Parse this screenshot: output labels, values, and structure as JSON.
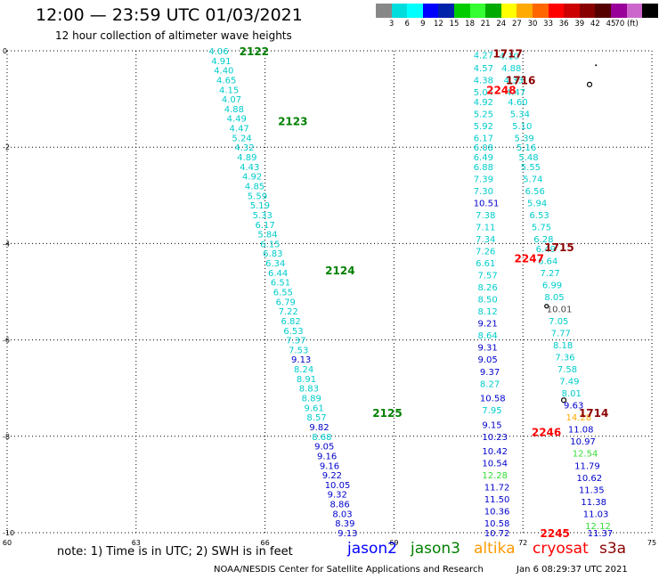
{
  "header": {
    "title": "12:00 — 23:59 UTC 01/03/2021",
    "subtitle": "12 hour collection of altimeter wave heights"
  },
  "colorbar": {
    "colors": [
      "#888888",
      "#00dddd",
      "#00ffff",
      "#0000ff",
      "#0022aa",
      "#00cc00",
      "#33ff33",
      "#00aa00",
      "#ffff00",
      "#ffaa00",
      "#ff6600",
      "#ff0000",
      "#cc0000",
      "#880000",
      "#550000",
      "#990099",
      "#cc66cc",
      "#000000"
    ],
    "labels": [
      "3",
      "6",
      "9",
      "12",
      "15",
      "18",
      "21",
      "24",
      "27",
      "30",
      "33",
      "36",
      "39",
      "42",
      "45",
      "70 (ft)"
    ]
  },
  "chart_data": {
    "type": "scatter",
    "xlim": [
      60,
      75
    ],
    "ylim": [
      -10,
      0
    ],
    "xticks": [
      "60",
      "63",
      "66",
      "69",
      "72",
      "75"
    ],
    "yticks": [
      "0",
      "-2",
      "-4",
      "-6",
      "-8",
      "-10"
    ],
    "grid": true,
    "track_labels": [
      {
        "text": "2122",
        "lon": 65.4,
        "lat": 0.0,
        "color": "#008000"
      },
      {
        "text": "2123",
        "lon": 66.3,
        "lat": -1.45,
        "color": "#008000"
      },
      {
        "text": "2124",
        "lon": 67.4,
        "lat": -4.55,
        "color": "#008000"
      },
      {
        "text": "2125",
        "lon": 68.5,
        "lat": -7.5,
        "color": "#008000"
      },
      {
        "text": "1717",
        "lon": 71.3,
        "lat": -0.05,
        "color": "#8b0000"
      },
      {
        "text": "1716",
        "lon": 71.6,
        "lat": -0.6,
        "color": "#8b0000"
      },
      {
        "text": "2248",
        "lon": 71.15,
        "lat": -0.8,
        "color": "#ff0000"
      },
      {
        "text": "1715",
        "lon": 72.5,
        "lat": -4.07,
        "color": "#8b0000"
      },
      {
        "text": "2247",
        "lon": 71.8,
        "lat": -4.3,
        "color": "#ff0000"
      },
      {
        "text": "1714",
        "lon": 73.3,
        "lat": -7.5,
        "color": "#8b0000"
      },
      {
        "text": "2246",
        "lon": 72.2,
        "lat": -7.9,
        "color": "#ff0000"
      },
      {
        "text": "2245",
        "lon": 72.4,
        "lat": -10.0,
        "color": "#ff0000"
      }
    ],
    "tracks": [
      {
        "color": "#00cccc",
        "points": [
          {
            "lon": 64.69,
            "lat": 0.0,
            "v": "4.06"
          },
          {
            "lon": 64.75,
            "lat": -0.2,
            "v": "4.91"
          },
          {
            "lon": 64.81,
            "lat": -0.4,
            "v": "4.40"
          },
          {
            "lon": 64.87,
            "lat": -0.6,
            "v": "4.65"
          },
          {
            "lon": 64.93,
            "lat": -0.8,
            "v": "4.15"
          },
          {
            "lon": 64.99,
            "lat": -1.0,
            "v": "4.07"
          },
          {
            "lon": 65.05,
            "lat": -1.2,
            "v": "4.88"
          },
          {
            "lon": 65.11,
            "lat": -1.4,
            "v": "4.49"
          },
          {
            "lon": 65.17,
            "lat": -1.6,
            "v": "4.47"
          },
          {
            "lon": 65.23,
            "lat": -1.8,
            "v": "5.24"
          },
          {
            "lon": 65.29,
            "lat": -2.0,
            "v": "4.32"
          },
          {
            "lon": 65.35,
            "lat": -2.2,
            "v": "4.89"
          },
          {
            "lon": 65.41,
            "lat": -2.4,
            "v": "4.43"
          },
          {
            "lon": 65.47,
            "lat": -2.6,
            "v": "4.92"
          },
          {
            "lon": 65.53,
            "lat": -2.8,
            "v": "4.85"
          },
          {
            "lon": 65.59,
            "lat": -3.0,
            "v": "5.59"
          },
          {
            "lon": 65.65,
            "lat": -3.2,
            "v": "5.19"
          },
          {
            "lon": 65.71,
            "lat": -3.4,
            "v": "5.33"
          },
          {
            "lon": 65.77,
            "lat": -3.6,
            "v": "6.17"
          },
          {
            "lon": 65.83,
            "lat": -3.8,
            "v": "5.84"
          },
          {
            "lon": 65.89,
            "lat": -4.0,
            "v": "6.15"
          },
          {
            "lon": 65.95,
            "lat": -4.2,
            "v": "6.83"
          },
          {
            "lon": 66.01,
            "lat": -4.4,
            "v": "6.34"
          },
          {
            "lon": 66.07,
            "lat": -4.6,
            "v": "6.44"
          },
          {
            "lon": 66.13,
            "lat": -4.8,
            "v": "6.51"
          },
          {
            "lon": 66.19,
            "lat": -5.0,
            "v": "6.55"
          },
          {
            "lon": 66.25,
            "lat": -5.2,
            "v": "6.79"
          },
          {
            "lon": 66.31,
            "lat": -5.4,
            "v": "7.22"
          },
          {
            "lon": 66.37,
            "lat": -5.6,
            "v": "6.82"
          },
          {
            "lon": 66.43,
            "lat": -5.8,
            "v": "6.53"
          },
          {
            "lon": 66.49,
            "lat": -6.0,
            "v": "7.37"
          },
          {
            "lon": 66.55,
            "lat": -6.2,
            "v": "7.53"
          }
        ]
      },
      {
        "color": "#0000cc",
        "points": [
          {
            "lon": 66.61,
            "lat": -6.4,
            "v": "9.13"
          }
        ]
      },
      {
        "color": "#00cccc",
        "points": [
          {
            "lon": 66.67,
            "lat": -6.6,
            "v": "8.24"
          },
          {
            "lon": 66.73,
            "lat": -6.8,
            "v": "8.91"
          },
          {
            "lon": 66.79,
            "lat": -7.0,
            "v": "8.83"
          },
          {
            "lon": 66.85,
            "lat": -7.2,
            "v": "8.89"
          },
          {
            "lon": 66.91,
            "lat": -7.4,
            "v": "9.61"
          },
          {
            "lon": 66.97,
            "lat": -7.6,
            "v": "8.57"
          }
        ]
      },
      {
        "color": "#0000cc",
        "points": [
          {
            "lon": 67.03,
            "lat": -7.8,
            "v": "9.82"
          }
        ]
      },
      {
        "color": "#00cccc",
        "points": [
          {
            "lon": 67.09,
            "lat": -8.0,
            "v": "8.68"
          }
        ]
      },
      {
        "color": "#0000cc",
        "points": [
          {
            "lon": 67.15,
            "lat": -8.2,
            "v": "9.05"
          },
          {
            "lon": 67.21,
            "lat": -8.4,
            "v": "9.16"
          },
          {
            "lon": 67.27,
            "lat": -8.6,
            "v": "9.16"
          },
          {
            "lon": 67.33,
            "lat": -8.8,
            "v": "9.22"
          },
          {
            "lon": 67.39,
            "lat": -9.0,
            "v": "10.05"
          },
          {
            "lon": 67.45,
            "lat": -9.2,
            "v": "9.32"
          },
          {
            "lon": 67.51,
            "lat": -9.4,
            "v": "8.86"
          },
          {
            "lon": 67.57,
            "lat": -9.6,
            "v": "8.03"
          },
          {
            "lon": 67.63,
            "lat": -9.8,
            "v": "8.39"
          },
          {
            "lon": 67.69,
            "lat": -10.0,
            "v": "9.13"
          }
        ]
      },
      {
        "color": "#00cccc",
        "points": [
          {
            "lon": 70.85,
            "lat": -0.08,
            "v": "4.27"
          },
          {
            "lon": 70.85,
            "lat": -0.35,
            "v": "4.57"
          },
          {
            "lon": 70.85,
            "lat": -0.6,
            "v": "4.38"
          },
          {
            "lon": 70.85,
            "lat": -0.85,
            "v": "5.04"
          },
          {
            "lon": 70.85,
            "lat": -1.05,
            "v": "4.92"
          },
          {
            "lon": 70.85,
            "lat": -1.3,
            "v": "5.25"
          },
          {
            "lon": 70.85,
            "lat": -1.55,
            "v": "5.92"
          },
          {
            "lon": 70.85,
            "lat": -1.8,
            "v": "6.17"
          },
          {
            "lon": 70.85,
            "lat": -2.0,
            "v": "6.08"
          },
          {
            "lon": 70.85,
            "lat": -2.2,
            "v": "6.49"
          },
          {
            "lon": 70.85,
            "lat": -2.4,
            "v": "6.88"
          },
          {
            "lon": 70.85,
            "lat": -2.65,
            "v": "7.39"
          },
          {
            "lon": 70.85,
            "lat": -2.9,
            "v": "7.30"
          }
        ]
      },
      {
        "color": "#0000cc",
        "points": [
          {
            "lon": 70.85,
            "lat": -3.15,
            "v": "10.51"
          }
        ]
      },
      {
        "color": "#00cccc",
        "points": [
          {
            "lon": 70.9,
            "lat": -3.4,
            "v": "7.38"
          },
          {
            "lon": 70.9,
            "lat": -3.65,
            "v": "7.11"
          },
          {
            "lon": 70.9,
            "lat": -3.9,
            "v": "7.34"
          },
          {
            "lon": 70.9,
            "lat": -4.15,
            "v": "7.26"
          },
          {
            "lon": 70.9,
            "lat": -4.4,
            "v": "6.61"
          },
          {
            "lon": 70.95,
            "lat": -4.65,
            "v": "7.57"
          },
          {
            "lon": 70.95,
            "lat": -4.9,
            "v": "8.26"
          },
          {
            "lon": 70.95,
            "lat": -5.15,
            "v": "8.50"
          },
          {
            "lon": 70.95,
            "lat": -5.4,
            "v": "8.12"
          }
        ]
      },
      {
        "color": "#0000cc",
        "points": [
          {
            "lon": 70.95,
            "lat": -5.65,
            "v": "9.21"
          }
        ]
      },
      {
        "color": "#00cccc",
        "points": [
          {
            "lon": 70.95,
            "lat": -5.9,
            "v": "8.64"
          }
        ]
      },
      {
        "color": "#0000cc",
        "points": [
          {
            "lon": 70.95,
            "lat": -6.15,
            "v": "9.31"
          },
          {
            "lon": 70.95,
            "lat": -6.4,
            "v": "9.05"
          },
          {
            "lon": 71.0,
            "lat": -6.65,
            "v": "9.37"
          }
        ]
      },
      {
        "color": "#00cccc",
        "points": [
          {
            "lon": 71.0,
            "lat": -6.9,
            "v": "8.27"
          }
        ]
      },
      {
        "color": "#0000cc",
        "points": [
          {
            "lon": 71.0,
            "lat": -7.2,
            "v": "10.58"
          }
        ]
      },
      {
        "color": "#00cccc",
        "points": [
          {
            "lon": 71.05,
            "lat": -7.45,
            "v": "7.95"
          }
        ]
      },
      {
        "color": "#0000cc",
        "points": [
          {
            "lon": 71.05,
            "lat": -7.75,
            "v": "9.15"
          },
          {
            "lon": 71.05,
            "lat": -8.0,
            "v": "10.23"
          },
          {
            "lon": 71.05,
            "lat": -8.3,
            "v": "10.42"
          },
          {
            "lon": 71.05,
            "lat": -8.55,
            "v": "10.54"
          }
        ]
      },
      {
        "color": "#33dd33",
        "points": [
          {
            "lon": 71.05,
            "lat": -8.8,
            "v": "12.28"
          }
        ]
      },
      {
        "color": "#0000cc",
        "points": [
          {
            "lon": 71.1,
            "lat": -9.05,
            "v": "11.72"
          },
          {
            "lon": 71.1,
            "lat": -9.3,
            "v": "11.50"
          },
          {
            "lon": 71.1,
            "lat": -9.55,
            "v": "10.36"
          },
          {
            "lon": 71.1,
            "lat": -9.8,
            "v": "10.58"
          },
          {
            "lon": 71.1,
            "lat": -10.0,
            "v": "10.72"
          }
        ]
      },
      {
        "color": "#00cccc",
        "points": [
          {
            "lon": 71.45,
            "lat": -0.1,
            "v": "4.10"
          },
          {
            "lon": 71.5,
            "lat": -0.35,
            "v": "4.88"
          },
          {
            "lon": 71.55,
            "lat": -0.6,
            "v": "4.33"
          },
          {
            "lon": 71.6,
            "lat": -0.85,
            "v": "4.47"
          },
          {
            "lon": 71.65,
            "lat": -1.05,
            "v": "4.60"
          },
          {
            "lon": 71.7,
            "lat": -1.3,
            "v": "5.34"
          },
          {
            "lon": 71.75,
            "lat": -1.55,
            "v": "5.10"
          },
          {
            "lon": 71.8,
            "lat": -1.8,
            "v": "5.39"
          },
          {
            "lon": 71.85,
            "lat": -2.0,
            "v": "5.16"
          },
          {
            "lon": 71.9,
            "lat": -2.2,
            "v": "5.48"
          },
          {
            "lon": 71.95,
            "lat": -2.4,
            "v": "5.55"
          },
          {
            "lon": 72.0,
            "lat": -2.65,
            "v": "5.74"
          },
          {
            "lon": 72.05,
            "lat": -2.9,
            "v": "6.56"
          },
          {
            "lon": 72.1,
            "lat": -3.15,
            "v": "5.94"
          },
          {
            "lon": 72.15,
            "lat": -3.4,
            "v": "6.53"
          },
          {
            "lon": 72.2,
            "lat": -3.65,
            "v": "5.75"
          },
          {
            "lon": 72.25,
            "lat": -3.9,
            "v": "6.28"
          },
          {
            "lon": 72.3,
            "lat": -4.1,
            "v": "6.49"
          },
          {
            "lon": 72.35,
            "lat": -4.35,
            "v": "6.64"
          },
          {
            "lon": 72.4,
            "lat": -4.6,
            "v": "7.27"
          },
          {
            "lon": 72.45,
            "lat": -4.85,
            "v": "6.99"
          },
          {
            "lon": 72.5,
            "lat": -5.1,
            "v": "8.05"
          }
        ]
      },
      {
        "color": "#444444",
        "points": [
          {
            "lon": 72.55,
            "lat": -5.35,
            "v": "10.01"
          }
        ]
      },
      {
        "color": "#00cccc",
        "points": [
          {
            "lon": 72.6,
            "lat": -5.6,
            "v": "7.05"
          },
          {
            "lon": 72.65,
            "lat": -5.85,
            "v": "7.77"
          },
          {
            "lon": 72.7,
            "lat": -6.1,
            "v": "8.18"
          },
          {
            "lon": 72.75,
            "lat": -6.35,
            "v": "7.36"
          },
          {
            "lon": 72.8,
            "lat": -6.6,
            "v": "7.58"
          },
          {
            "lon": 72.85,
            "lat": -6.85,
            "v": "7.49"
          },
          {
            "lon": 72.9,
            "lat": -7.1,
            "v": "8.01"
          }
        ]
      },
      {
        "color": "#0000cc",
        "points": [
          {
            "lon": 72.95,
            "lat": -7.35,
            "v": "9.63"
          }
        ]
      },
      {
        "color": "#ffaa00",
        "points": [
          {
            "lon": 73.0,
            "lat": -7.6,
            "v": "14.28"
          }
        ]
      },
      {
        "color": "#0000cc",
        "points": [
          {
            "lon": 73.05,
            "lat": -7.85,
            "v": "11.08"
          },
          {
            "lon": 73.1,
            "lat": -8.1,
            "v": "10.97"
          }
        ]
      },
      {
        "color": "#33dd33",
        "points": [
          {
            "lon": 73.15,
            "lat": -8.35,
            "v": "12.54"
          }
        ]
      },
      {
        "color": "#0000cc",
        "points": [
          {
            "lon": 73.2,
            "lat": -8.6,
            "v": "11.79"
          },
          {
            "lon": 73.25,
            "lat": -8.85,
            "v": "10.62"
          },
          {
            "lon": 73.3,
            "lat": -9.1,
            "v": "11.35"
          },
          {
            "lon": 73.35,
            "lat": -9.35,
            "v": "11.38"
          },
          {
            "lon": 73.4,
            "lat": -9.6,
            "v": "11.03"
          }
        ]
      },
      {
        "color": "#33dd33",
        "points": [
          {
            "lon": 73.45,
            "lat": -9.85,
            "v": "12.12"
          }
        ]
      },
      {
        "color": "#0000cc",
        "points": [
          {
            "lon": 73.5,
            "lat": -10.0,
            "v": "11.37"
          }
        ]
      }
    ]
  },
  "footer": {
    "note": "note:  1) Time is in UTC;  2) SWH is in feet",
    "satellites": [
      {
        "name": "jason2",
        "color": "#0000ff"
      },
      {
        "name": "jason3",
        "color": "#008000"
      },
      {
        "name": "altika",
        "color": "#ff9900"
      },
      {
        "name": "cryosat",
        "color": "#ff0000"
      },
      {
        "name": "s3a",
        "color": "#8b0000"
      }
    ],
    "credit": "NOAA/NESDIS Center for Satellite Applications and Research",
    "timestamp": "Jan  6 08:29:37 UTC 2021"
  }
}
